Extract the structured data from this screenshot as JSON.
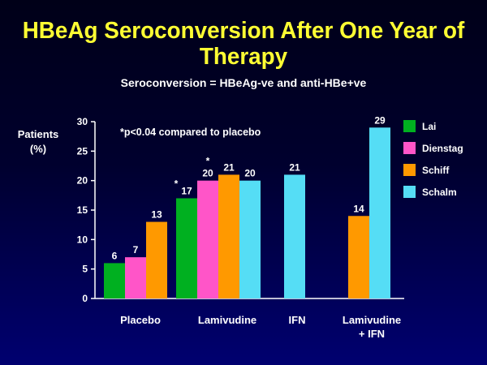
{
  "slide": {
    "title_line1": "HBeAg Seroconversion After One Year of",
    "title_line2": "Therapy",
    "subtitle": "Seroconversion = HBeAg-ve and anti-HBe+ve"
  },
  "chart_data": {
    "type": "bar",
    "title": "HBeAg Seroconversion After One Year of Therapy",
    "subtitle": "Seroconversion = HBeAg-ve and anti-HBe+ve",
    "ylabel_line1": "Patients",
    "ylabel_line2": "(%)",
    "ylim": [
      0,
      30
    ],
    "yticks": [
      "0",
      "5",
      "10",
      "15",
      "20",
      "25",
      "30"
    ],
    "annotation": "*p<0.04 compared to placebo",
    "grid": false,
    "legend_position": "right",
    "categories": [
      {
        "label": [
          "Placebo"
        ],
        "bars": [
          {
            "series": "Lai",
            "value": 6,
            "label": "6"
          },
          {
            "series": "Dienstag",
            "value": 7,
            "label": "7"
          },
          {
            "series": "Schiff",
            "value": 13,
            "label": "13"
          }
        ]
      },
      {
        "label": [
          "Lamivudine"
        ],
        "bars": [
          {
            "series": "Lai",
            "value": 17,
            "label": "17",
            "star": true
          },
          {
            "series": "Dienstag",
            "value": 20,
            "label": "20",
            "star": true
          },
          {
            "series": "Schiff",
            "value": 21,
            "label": "21"
          },
          {
            "series": "Schalm",
            "value": 20,
            "label": "20"
          }
        ]
      },
      {
        "label": [
          "IFN"
        ],
        "bars": [
          {
            "series": "Schalm",
            "value": 21,
            "label": "21"
          }
        ]
      },
      {
        "label": [
          "Lamivudine",
          "+ IFN"
        ],
        "bars": [
          {
            "series": "Schiff",
            "value": 14,
            "label": "14"
          },
          {
            "series": "Schalm",
            "value": 29,
            "label": "29"
          }
        ]
      }
    ],
    "series": [
      {
        "name": "Lai",
        "color": "#00b020"
      },
      {
        "name": "Dienstag",
        "color": "#ff55c8"
      },
      {
        "name": "Schiff",
        "color": "#ff9900"
      },
      {
        "name": "Schalm",
        "color": "#55ddf5"
      }
    ],
    "star_symbol": "*"
  }
}
